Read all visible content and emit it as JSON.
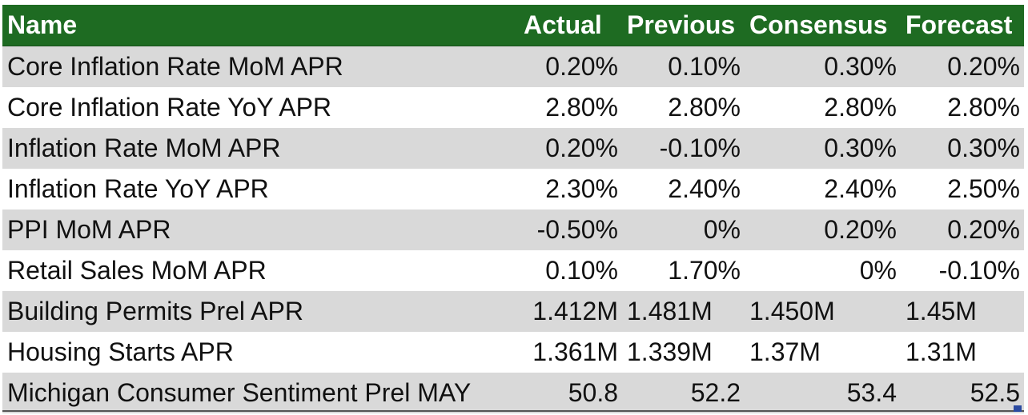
{
  "header": {
    "name": "Name",
    "actual": "Actual",
    "previous": "Previous",
    "consensus": "Consensus",
    "forecast": "Forecast"
  },
  "rows": [
    {
      "name": "Core Inflation Rate MoM APR",
      "actual": "0.20%",
      "previous": "0.10%",
      "consensus": "0.30%",
      "forecast": "0.20%"
    },
    {
      "name": "Core Inflation Rate YoY APR",
      "actual": "2.80%",
      "previous": "2.80%",
      "consensus": "2.80%",
      "forecast": "2.80%"
    },
    {
      "name": "Inflation Rate MoM APR",
      "actual": "0.20%",
      "previous": "-0.10%",
      "consensus": "0.30%",
      "forecast": "0.30%"
    },
    {
      "name": "Inflation Rate YoY APR",
      "actual": "2.30%",
      "previous": "2.40%",
      "consensus": "2.40%",
      "forecast": "2.50%"
    },
    {
      "name": "PPI MoM APR",
      "actual": "-0.50%",
      "previous": "0%",
      "consensus": "0.20%",
      "forecast": "0.20%"
    },
    {
      "name": "Retail Sales MoM APR",
      "actual": "0.10%",
      "previous": "1.70%",
      "consensus": "0%",
      "forecast": "-0.10%"
    },
    {
      "name": "Building Permits Prel APR",
      "actual": "1.412M",
      "previous": "1.481M",
      "consensus": "1.450M",
      "forecast": "1.45M"
    },
    {
      "name": "Housing Starts APR",
      "actual": "1.361M",
      "previous": "1.339M",
      "consensus": "1.37M",
      "forecast": "1.31M"
    },
    {
      "name": "Michigan Consumer Sentiment Prel MAY",
      "actual": "50.8",
      "previous": "52.2",
      "consensus": "53.4",
      "forecast": "52.5"
    }
  ],
  "colors": {
    "header_bg": "#1e6b22",
    "band_bg": "#d9d9d9"
  }
}
